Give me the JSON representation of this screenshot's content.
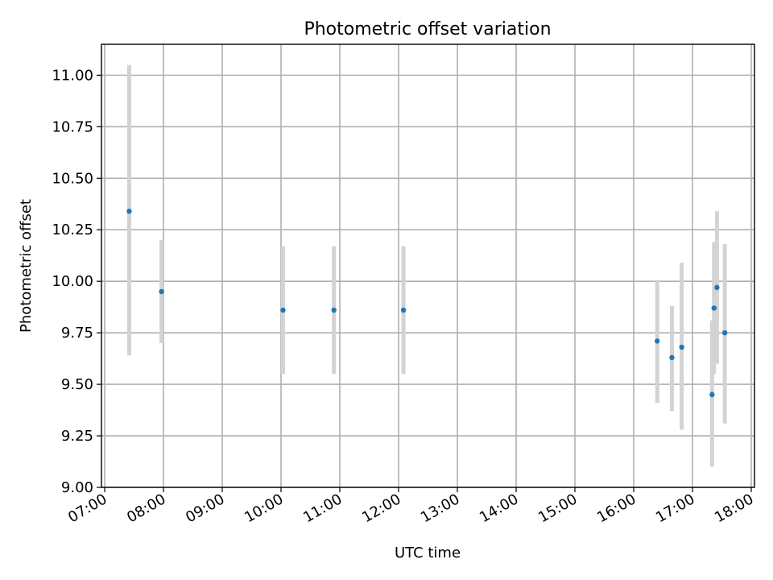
{
  "chart_data": {
    "type": "scatter",
    "title": "Photometric offset variation",
    "xlabel": "UTC time",
    "ylabel": "Photometric offset",
    "x_tick_labels": [
      "07:00",
      "08:00",
      "09:00",
      "10:00",
      "11:00",
      "12:00",
      "13:00",
      "14:00",
      "15:00",
      "16:00",
      "17:00",
      "18:00"
    ],
    "y_tick_labels": [
      "9.00",
      "9.25",
      "9.50",
      "9.75",
      "10.00",
      "10.25",
      "10.50",
      "10.75",
      "11.00"
    ],
    "ylim": [
      9.0,
      11.15
    ],
    "grid": true,
    "colors": {
      "marker": "#1f77b4",
      "errorbar": "#d3d3d3",
      "grid": "#b0b0b0"
    },
    "points": [
      {
        "x": "07:25",
        "y": 10.34,
        "yerr_low": 9.64,
        "yerr_high": 11.05
      },
      {
        "x": "07:58",
        "y": 9.95,
        "yerr_low": 9.7,
        "yerr_high": 10.2
      },
      {
        "x": "10:02",
        "y": 9.86,
        "yerr_low": 9.55,
        "yerr_high": 10.17
      },
      {
        "x": "10:54",
        "y": 9.86,
        "yerr_low": 9.55,
        "yerr_high": 10.17
      },
      {
        "x": "12:05",
        "y": 9.86,
        "yerr_low": 9.55,
        "yerr_high": 10.17
      },
      {
        "x": "16:24",
        "y": 9.71,
        "yerr_low": 9.41,
        "yerr_high": 10.0
      },
      {
        "x": "16:39",
        "y": 9.63,
        "yerr_low": 9.37,
        "yerr_high": 9.88
      },
      {
        "x": "16:49",
        "y": 9.68,
        "yerr_low": 9.28,
        "yerr_high": 10.09
      },
      {
        "x": "17:20",
        "y": 9.45,
        "yerr_low": 9.1,
        "yerr_high": 9.81
      },
      {
        "x": "17:22",
        "y": 9.87,
        "yerr_low": 9.55,
        "yerr_high": 10.19
      },
      {
        "x": "17:25",
        "y": 9.97,
        "yerr_low": 9.6,
        "yerr_high": 10.34
      },
      {
        "x": "17:33",
        "y": 9.75,
        "yerr_low": 9.31,
        "yerr_high": 10.18
      }
    ]
  }
}
